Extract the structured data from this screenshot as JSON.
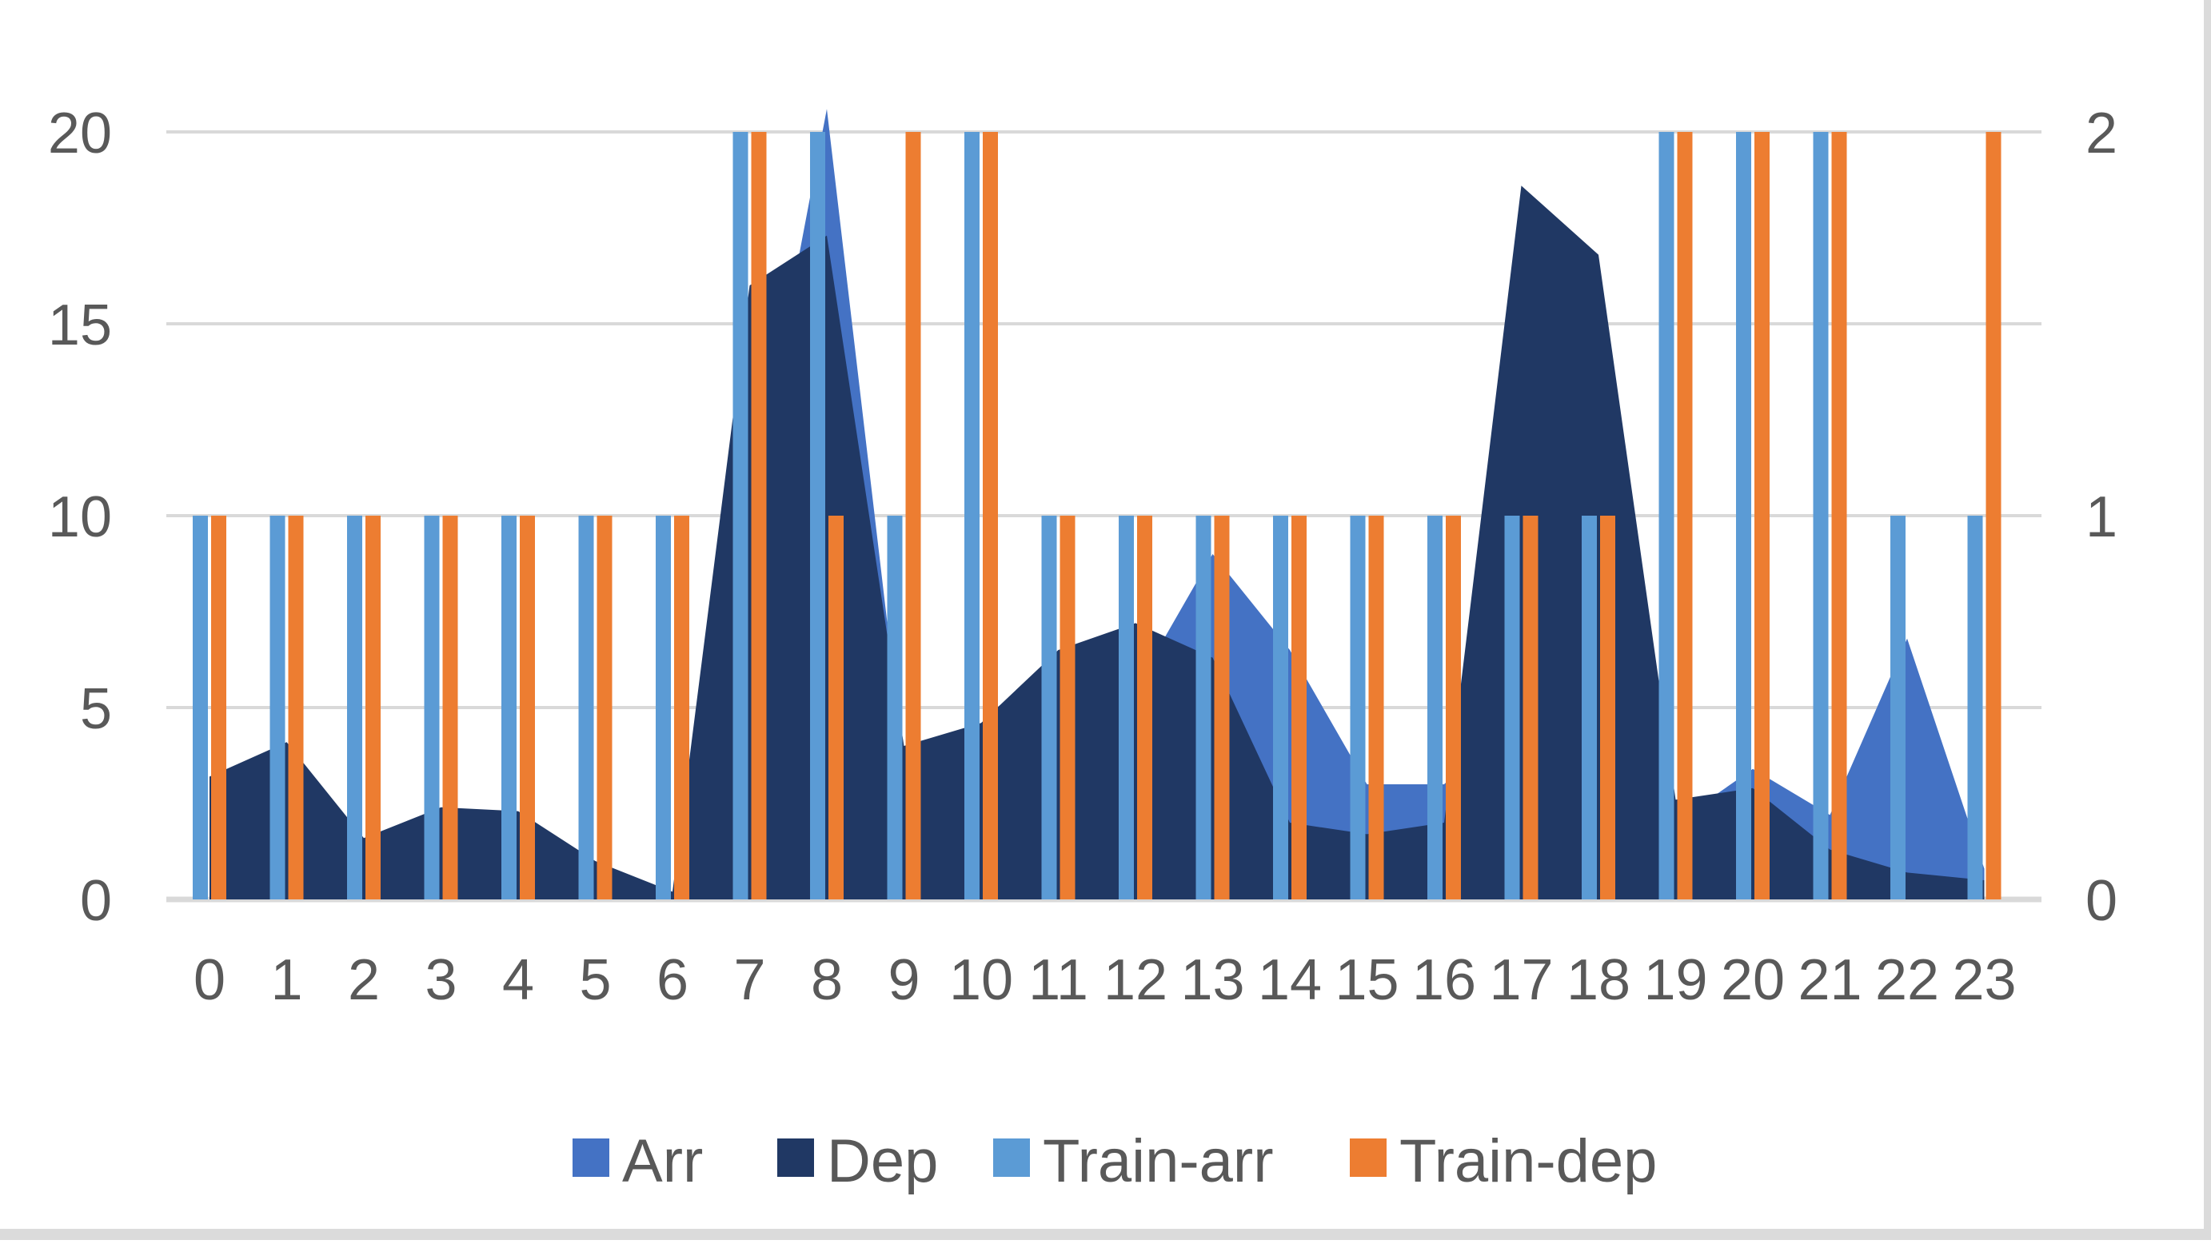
{
  "chart_data": {
    "type": "combo",
    "title": "",
    "categories": [
      "0",
      "1",
      "2",
      "3",
      "4",
      "5",
      "6",
      "7",
      "8",
      "9",
      "10",
      "11",
      "12",
      "13",
      "14",
      "15",
      "16",
      "17",
      "18",
      "19",
      "20",
      "21",
      "22",
      "23"
    ],
    "series": [
      {
        "name": "Arr",
        "type": "area",
        "axis": "left",
        "color": "#4472C4",
        "values": [
          0,
          0,
          0,
          0,
          0,
          0,
          0,
          10,
          20.6,
          3.5,
          3,
          4,
          5.5,
          9,
          6.5,
          3,
          3,
          5,
          4,
          2,
          3.4,
          2.2,
          6.8,
          0.8
        ]
      },
      {
        "name": "Dep",
        "type": "area",
        "axis": "left",
        "color": "#203864",
        "values": [
          3.2,
          4.1,
          1.6,
          2.4,
          2.3,
          1,
          0.2,
          16,
          17.3,
          4,
          4.6,
          6.5,
          7.2,
          6.3,
          2,
          1.7,
          2,
          18.6,
          16.8,
          2.6,
          2.9,
          1.3,
          0.7,
          0.5
        ]
      },
      {
        "name": "Train-arr",
        "type": "bar",
        "axis": "right",
        "color": "#5B9BD5",
        "values": [
          1,
          1,
          1,
          1,
          1,
          1,
          1,
          2,
          2,
          1,
          2,
          1,
          1,
          1,
          1,
          1,
          1,
          1,
          1,
          2,
          2,
          2,
          1,
          1
        ]
      },
      {
        "name": "Train-dep",
        "type": "bar",
        "axis": "right",
        "color": "#ED7D31",
        "values": [
          1,
          1,
          1,
          1,
          1,
          1,
          1,
          2,
          1,
          2,
          2,
          1,
          1,
          1,
          1,
          1,
          1,
          1,
          1,
          2,
          2,
          2,
          0,
          2
        ]
      }
    ],
    "left_axis": {
      "ticks": [
        0,
        5,
        10,
        15,
        20
      ],
      "range": [
        0,
        20
      ]
    },
    "right_axis": {
      "ticks": [
        0,
        1,
        2
      ],
      "range": [
        0,
        2
      ]
    },
    "grid": true,
    "legend_position": "bottom",
    "colors": {
      "gridline": "#D9D9D9",
      "axis_text": "#595959",
      "background": "#FFFFFF",
      "edge_strip": "#DBDBDB"
    }
  }
}
